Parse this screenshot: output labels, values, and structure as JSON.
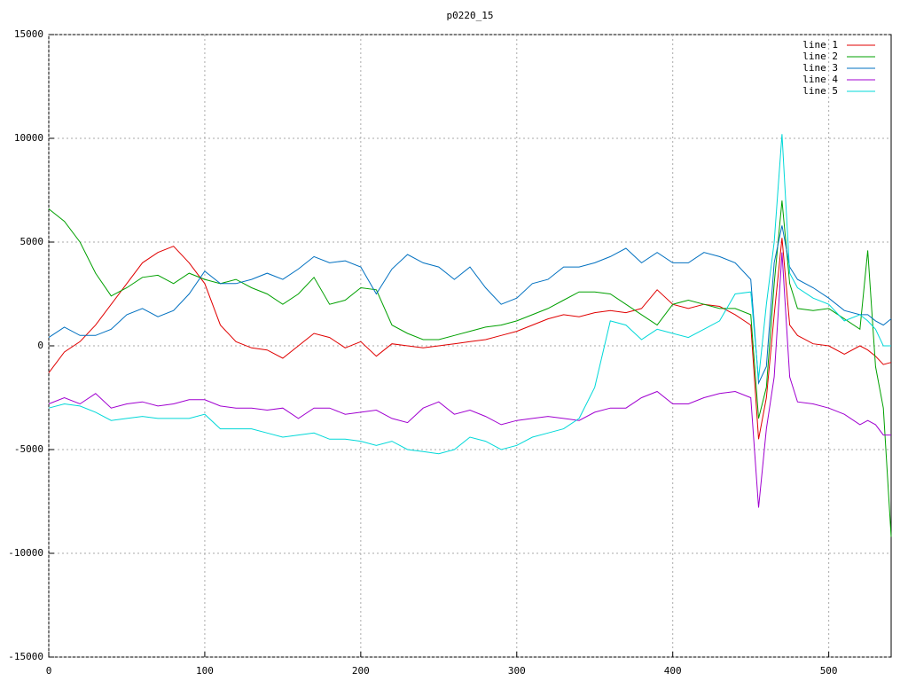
{
  "chart_data": {
    "type": "line",
    "title": "p0220_15",
    "x": [
      0,
      10,
      20,
      30,
      40,
      50,
      60,
      70,
      80,
      90,
      100,
      110,
      120,
      130,
      140,
      150,
      160,
      170,
      180,
      190,
      200,
      210,
      220,
      230,
      240,
      250,
      260,
      270,
      280,
      290,
      300,
      310,
      320,
      330,
      340,
      350,
      360,
      370,
      380,
      390,
      400,
      410,
      420,
      430,
      440,
      450,
      455,
      460,
      465,
      470,
      475,
      480,
      490,
      500,
      510,
      520,
      525,
      530,
      535,
      540
    ],
    "series": [
      {
        "name": "line 1",
        "color": "#e00000",
        "values": [
          -1300,
          -300,
          200,
          1000,
          2000,
          3000,
          4000,
          4500,
          4800,
          4000,
          3000,
          1000,
          200,
          -100,
          -200,
          -600,
          0,
          600,
          400,
          -100,
          200,
          -500,
          100,
          0,
          -100,
          0,
          100,
          200,
          300,
          500,
          700,
          1000,
          1300,
          1500,
          1400,
          1600,
          1700,
          1600,
          1800,
          2700,
          2000,
          1800,
          2000,
          1900,
          1500,
          1000,
          -4500,
          -2500,
          1500,
          5200,
          1000,
          500,
          100,
          0,
          -400,
          0,
          -200,
          -500,
          -900,
          -800
        ]
      },
      {
        "name": "line 2",
        "color": "#00a000",
        "values": [
          6600,
          6000,
          5000,
          3500,
          2400,
          2800,
          3300,
          3400,
          3000,
          3500,
          3200,
          3000,
          3200,
          2800,
          2500,
          2000,
          2500,
          3300,
          2000,
          2200,
          2800,
          2700,
          1000,
          600,
          300,
          300,
          500,
          700,
          900,
          1000,
          1200,
          1500,
          1800,
          2200,
          2600,
          2600,
          2500,
          2000,
          1500,
          1000,
          2000,
          2200,
          2000,
          1800,
          1800,
          1500,
          -3500,
          -2000,
          3000,
          7000,
          3000,
          1800,
          1700,
          1800,
          1300,
          800,
          4600,
          -1000,
          -3000,
          -9200
        ]
      },
      {
        "name": "line 3",
        "color": "#0070c0",
        "values": [
          400,
          900,
          500,
          500,
          800,
          1500,
          1800,
          1400,
          1700,
          2500,
          3600,
          3000,
          3000,
          3200,
          3500,
          3200,
          3700,
          4300,
          4000,
          4100,
          3800,
          2500,
          3700,
          4400,
          4000,
          3800,
          3200,
          3800,
          2800,
          2000,
          2300,
          3000,
          3200,
          3800,
          3800,
          4000,
          4300,
          4700,
          4000,
          4500,
          4000,
          4000,
          4500,
          4300,
          4000,
          3200,
          -1800,
          -1000,
          4000,
          5800,
          3800,
          3200,
          2800,
          2300,
          1700,
          1500,
          1500,
          1200,
          1000,
          1300
        ]
      },
      {
        "name": "line 4",
        "color": "#a000d0",
        "values": [
          -2800,
          -2500,
          -2800,
          -2300,
          -3000,
          -2800,
          -2700,
          -2900,
          -2800,
          -2600,
          -2600,
          -2900,
          -3000,
          -3000,
          -3100,
          -3000,
          -3500,
          -3000,
          -3000,
          -3300,
          -3200,
          -3100,
          -3500,
          -3700,
          -3000,
          -2700,
          -3300,
          -3100,
          -3400,
          -3800,
          -3600,
          -3500,
          -3400,
          -3500,
          -3600,
          -3200,
          -3000,
          -3000,
          -2500,
          -2200,
          -2800,
          -2800,
          -2500,
          -2300,
          -2200,
          -2500,
          -7800,
          -4000,
          -1500,
          4500,
          -1500,
          -2700,
          -2800,
          -3000,
          -3300,
          -3800,
          -3600,
          -3800,
          -4300,
          -4300
        ]
      },
      {
        "name": "line 5",
        "color": "#00d8d8",
        "values": [
          -3000,
          -2800,
          -2900,
          -3200,
          -3600,
          -3500,
          -3400,
          -3500,
          -3500,
          -3500,
          -3300,
          -4000,
          -4000,
          -4000,
          -4200,
          -4400,
          -4300,
          -4200,
          -4500,
          -4500,
          -4600,
          -4800,
          -4600,
          -5000,
          -5100,
          -5200,
          -5000,
          -4400,
          -4600,
          -5000,
          -4800,
          -4400,
          -4200,
          -4000,
          -3500,
          -2000,
          1200,
          1000,
          300,
          800,
          600,
          400,
          800,
          1200,
          2500,
          2600,
          -1600,
          2000,
          5000,
          10200,
          3500,
          2800,
          2300,
          2000,
          1200,
          1500,
          1200,
          800,
          0,
          0
        ]
      }
    ],
    "xlim": [
      0,
      540
    ],
    "xticks": [
      0,
      100,
      200,
      300,
      400,
      500
    ],
    "ylim": [
      -15000,
      15000
    ],
    "yticks": [
      -15000,
      -10000,
      -5000,
      0,
      5000,
      10000,
      15000
    ],
    "grid": true,
    "legend": "top-right"
  }
}
